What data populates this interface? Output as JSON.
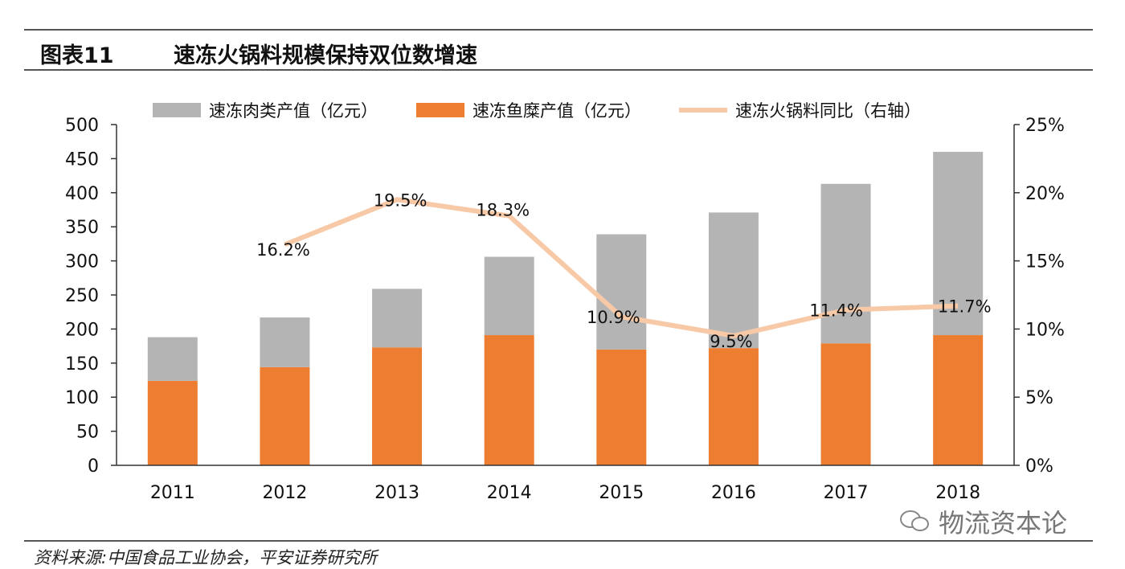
{
  "header": {
    "figure_num": "图表11",
    "title": "速冻火锅料规模保持双位数增速"
  },
  "footer": {
    "source": "资料来源:中国食品工业协会，平安证券研究所"
  },
  "watermark": {
    "text": "物流资本论"
  },
  "chart_data": {
    "type": "bar",
    "stacked": true,
    "categories": [
      "2011",
      "2012",
      "2013",
      "2014",
      "2015",
      "2016",
      "2017",
      "2018"
    ],
    "series": [
      {
        "name": "速冻鱼糜产值（亿元）",
        "kind": "bar",
        "axis": "left",
        "color": "#ED7D31",
        "values": [
          124,
          144,
          173,
          191,
          170,
          172,
          179,
          191
        ]
      },
      {
        "name": "速冻肉类产值（亿元）",
        "kind": "bar",
        "axis": "left",
        "color": "#B4B4B4",
        "values": [
          64,
          73,
          86,
          115,
          169,
          199,
          234,
          269
        ]
      },
      {
        "name": "速冻火锅料同比（右轴）",
        "kind": "line",
        "axis": "right",
        "color": "#F8C9A6",
        "values": [
          null,
          16.2,
          19.5,
          18.3,
          10.9,
          9.5,
          11.4,
          11.7
        ],
        "labels": [
          "",
          "16.2%",
          "19.5%",
          "18.3%",
          "10.9%",
          "9.5%",
          "11.4%",
          "11.7%"
        ]
      }
    ],
    "legend_order": [
      "速冻肉类产值（亿元）",
      "速冻鱼糜产值（亿元）",
      "速冻火锅料同比（右轴）"
    ],
    "y_left": {
      "min": 0,
      "max": 500,
      "step": 50,
      "ticks": [
        "0",
        "50",
        "100",
        "150",
        "200",
        "250",
        "300",
        "350",
        "400",
        "450",
        "500"
      ]
    },
    "y_right": {
      "min": 0,
      "max": 25,
      "step": 5,
      "ticks": [
        "0%",
        "5%",
        "10%",
        "15%",
        "20%",
        "25%"
      ]
    },
    "legend_position": "top",
    "grid": false
  }
}
